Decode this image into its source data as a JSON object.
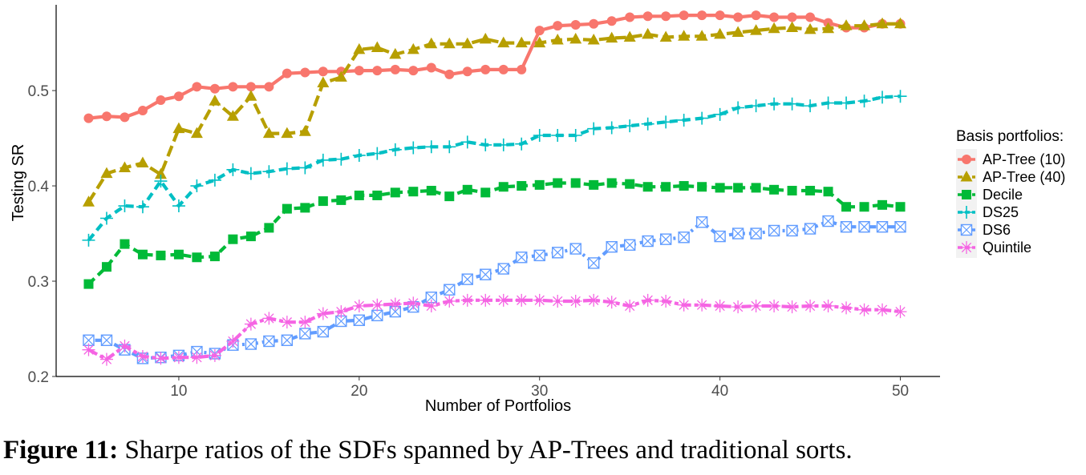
{
  "caption": {
    "label": "Figure 11:",
    "text": "Sharpe ratios of the SDFs spanned by AP-Trees and traditional sorts."
  },
  "chart_data": {
    "type": "line",
    "title": "",
    "xlabel": "Number of Portfolios",
    "ylabel": "Testing SR",
    "xlim": [
      3.2,
      52.2
    ],
    "ylim": [
      0.2,
      0.59
    ],
    "xticks": [
      10,
      20,
      30,
      40,
      50
    ],
    "yticks": [
      0.2,
      0.3,
      0.4,
      0.5
    ],
    "grid": false,
    "legend": {
      "title": "Basis portfolios:",
      "position": "right"
    },
    "x": [
      5,
      6,
      7,
      8,
      9,
      10,
      11,
      12,
      13,
      14,
      15,
      16,
      17,
      18,
      19,
      20,
      21,
      22,
      23,
      24,
      25,
      26,
      27,
      28,
      29,
      30,
      31,
      32,
      33,
      34,
      35,
      36,
      37,
      38,
      39,
      40,
      41,
      42,
      43,
      44,
      45,
      46,
      47,
      48,
      49,
      50
    ],
    "series": [
      {
        "name": "AP-Tree (10)",
        "color": "#F8766D",
        "marker": "circle",
        "dash": "solid",
        "values": [
          0.471,
          0.473,
          0.472,
          0.479,
          0.49,
          0.494,
          0.504,
          0.502,
          0.504,
          0.504,
          0.504,
          0.518,
          0.519,
          0.52,
          0.52,
          0.521,
          0.521,
          0.522,
          0.521,
          0.524,
          0.517,
          0.52,
          0.522,
          0.522,
          0.522,
          0.563,
          0.568,
          0.569,
          0.57,
          0.573,
          0.577,
          0.578,
          0.578,
          0.579,
          0.579,
          0.579,
          0.577,
          0.579,
          0.577,
          0.577,
          0.577,
          0.571,
          0.566,
          0.566,
          0.57,
          0.57
        ]
      },
      {
        "name": "AP-Tree (40)",
        "color": "#B79F00",
        "marker": "triangle",
        "dash": "longdash",
        "values": [
          0.383,
          0.413,
          0.419,
          0.424,
          0.412,
          0.46,
          0.455,
          0.489,
          0.473,
          0.494,
          0.455,
          0.455,
          0.457,
          0.508,
          0.514,
          0.543,
          0.545,
          0.538,
          0.543,
          0.549,
          0.549,
          0.549,
          0.554,
          0.55,
          0.55,
          0.55,
          0.553,
          0.554,
          0.553,
          0.555,
          0.556,
          0.559,
          0.556,
          0.557,
          0.557,
          0.559,
          0.561,
          0.563,
          0.565,
          0.566,
          0.564,
          0.565,
          0.568,
          0.568,
          0.57,
          0.57
        ]
      },
      {
        "name": "Decile",
        "color": "#00BA38",
        "marker": "square",
        "dash": "dashed",
        "values": [
          0.297,
          0.315,
          0.339,
          0.328,
          0.327,
          0.328,
          0.325,
          0.326,
          0.344,
          0.347,
          0.356,
          0.376,
          0.377,
          0.384,
          0.385,
          0.39,
          0.39,
          0.393,
          0.394,
          0.395,
          0.389,
          0.396,
          0.393,
          0.399,
          0.4,
          0.401,
          0.403,
          0.403,
          0.401,
          0.403,
          0.402,
          0.399,
          0.399,
          0.4,
          0.399,
          0.398,
          0.398,
          0.398,
          0.396,
          0.395,
          0.395,
          0.394,
          0.378,
          0.378,
          0.38,
          0.378
        ]
      },
      {
        "name": "DS25",
        "color": "#00BFC4",
        "marker": "plus",
        "dash": "dashed",
        "values": [
          0.343,
          0.366,
          0.379,
          0.378,
          0.405,
          0.379,
          0.4,
          0.406,
          0.417,
          0.413,
          0.415,
          0.418,
          0.419,
          0.427,
          0.428,
          0.432,
          0.434,
          0.438,
          0.44,
          0.441,
          0.441,
          0.446,
          0.443,
          0.443,
          0.444,
          0.453,
          0.453,
          0.453,
          0.46,
          0.461,
          0.463,
          0.465,
          0.467,
          0.469,
          0.471,
          0.475,
          0.482,
          0.484,
          0.486,
          0.486,
          0.484,
          0.487,
          0.487,
          0.489,
          0.493,
          0.494
        ]
      },
      {
        "name": "DS6",
        "color": "#619CFF",
        "marker": "squarecross",
        "dash": "dotdash",
        "values": [
          0.238,
          0.238,
          0.228,
          0.219,
          0.22,
          0.222,
          0.226,
          0.224,
          0.233,
          0.234,
          0.237,
          0.238,
          0.245,
          0.247,
          0.258,
          0.259,
          0.264,
          0.268,
          0.273,
          0.283,
          0.291,
          0.302,
          0.307,
          0.313,
          0.325,
          0.327,
          0.33,
          0.334,
          0.319,
          0.336,
          0.338,
          0.342,
          0.344,
          0.346,
          0.362,
          0.347,
          0.35,
          0.35,
          0.353,
          0.353,
          0.355,
          0.363,
          0.357,
          0.357,
          0.357,
          0.357
        ]
      },
      {
        "name": "Quintile",
        "color": "#F564E3",
        "marker": "asterisk",
        "dash": "twodash",
        "values": [
          0.228,
          0.218,
          0.232,
          0.221,
          0.219,
          0.22,
          0.22,
          0.222,
          0.237,
          0.255,
          0.261,
          0.257,
          0.257,
          0.266,
          0.268,
          0.274,
          0.275,
          0.276,
          0.277,
          0.274,
          0.279,
          0.28,
          0.28,
          0.28,
          0.28,
          0.28,
          0.279,
          0.279,
          0.28,
          0.278,
          0.274,
          0.28,
          0.279,
          0.275,
          0.275,
          0.274,
          0.273,
          0.274,
          0.274,
          0.273,
          0.274,
          0.274,
          0.272,
          0.27,
          0.27,
          0.268
        ]
      }
    ]
  }
}
